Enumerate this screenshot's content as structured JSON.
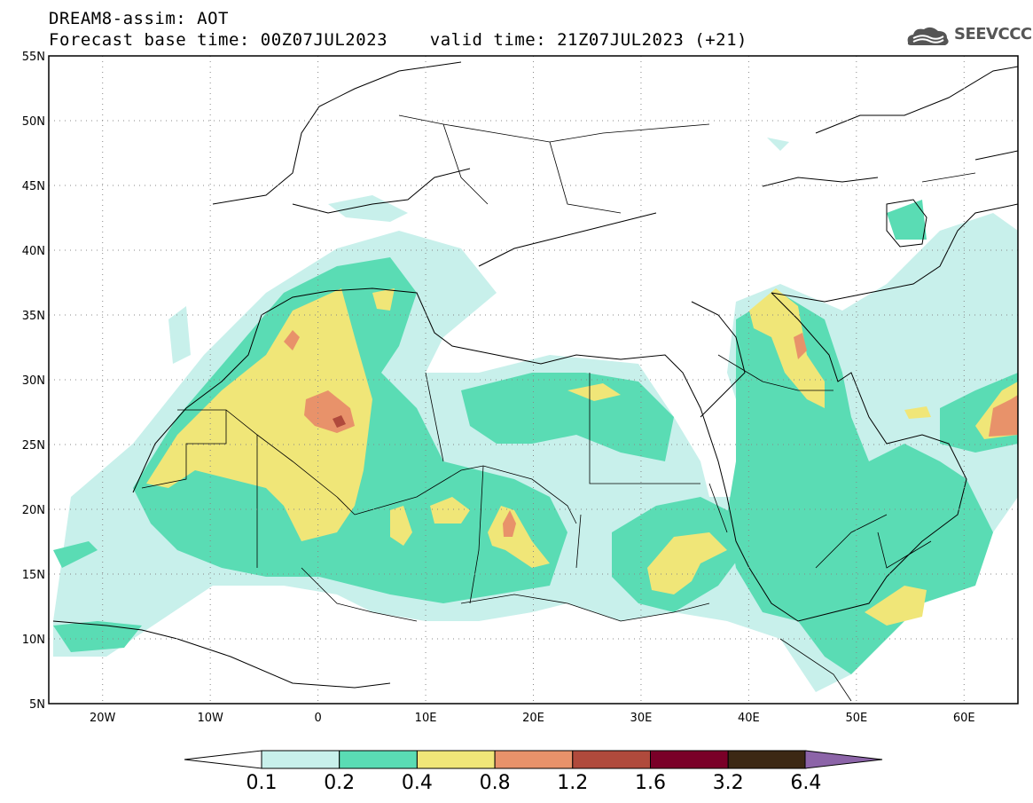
{
  "title": {
    "line1": "DREAM8-assim: AOT",
    "line2": "Forecast base time: 00Z07JUL2023    valid time: 21Z07JUL2023 (+21)"
  },
  "logo": {
    "text": "SEEVCCC",
    "icon": "cloud-logo-icon"
  },
  "map": {
    "lon_range": [
      -25,
      65
    ],
    "lat_range": [
      5,
      55
    ],
    "lat_ticks": [
      {
        "value": 55,
        "label": "55N"
      },
      {
        "value": 50,
        "label": "50N"
      },
      {
        "value": 45,
        "label": "45N"
      },
      {
        "value": 40,
        "label": "40N"
      },
      {
        "value": 35,
        "label": "35N"
      },
      {
        "value": 30,
        "label": "30N"
      },
      {
        "value": 25,
        "label": "25N"
      },
      {
        "value": 20,
        "label": "20N"
      },
      {
        "value": 15,
        "label": "15N"
      },
      {
        "value": 10,
        "label": "10N"
      },
      {
        "value": 5,
        "label": "5N"
      }
    ],
    "lon_ticks": [
      {
        "value": -20,
        "label": "20W"
      },
      {
        "value": -10,
        "label": "10W"
      },
      {
        "value": 0,
        "label": "0"
      },
      {
        "value": 10,
        "label": "10E"
      },
      {
        "value": 20,
        "label": "20E"
      },
      {
        "value": 30,
        "label": "30E"
      },
      {
        "value": 40,
        "label": "40E"
      },
      {
        "value": 50,
        "label": "50E"
      },
      {
        "value": 60,
        "label": "60E"
      }
    ],
    "grid": "dotted"
  },
  "colorbar": {
    "levels": [
      "0.1",
      "0.2",
      "0.4",
      "0.8",
      "1.2",
      "1.6",
      "3.2",
      "6.4"
    ],
    "colors": [
      "#c8f0eb",
      "#5adcb4",
      "#f0e678",
      "#e8926a",
      "#b04a3c",
      "#7a0028",
      "#3c2814",
      "#8c64a8"
    ]
  }
}
